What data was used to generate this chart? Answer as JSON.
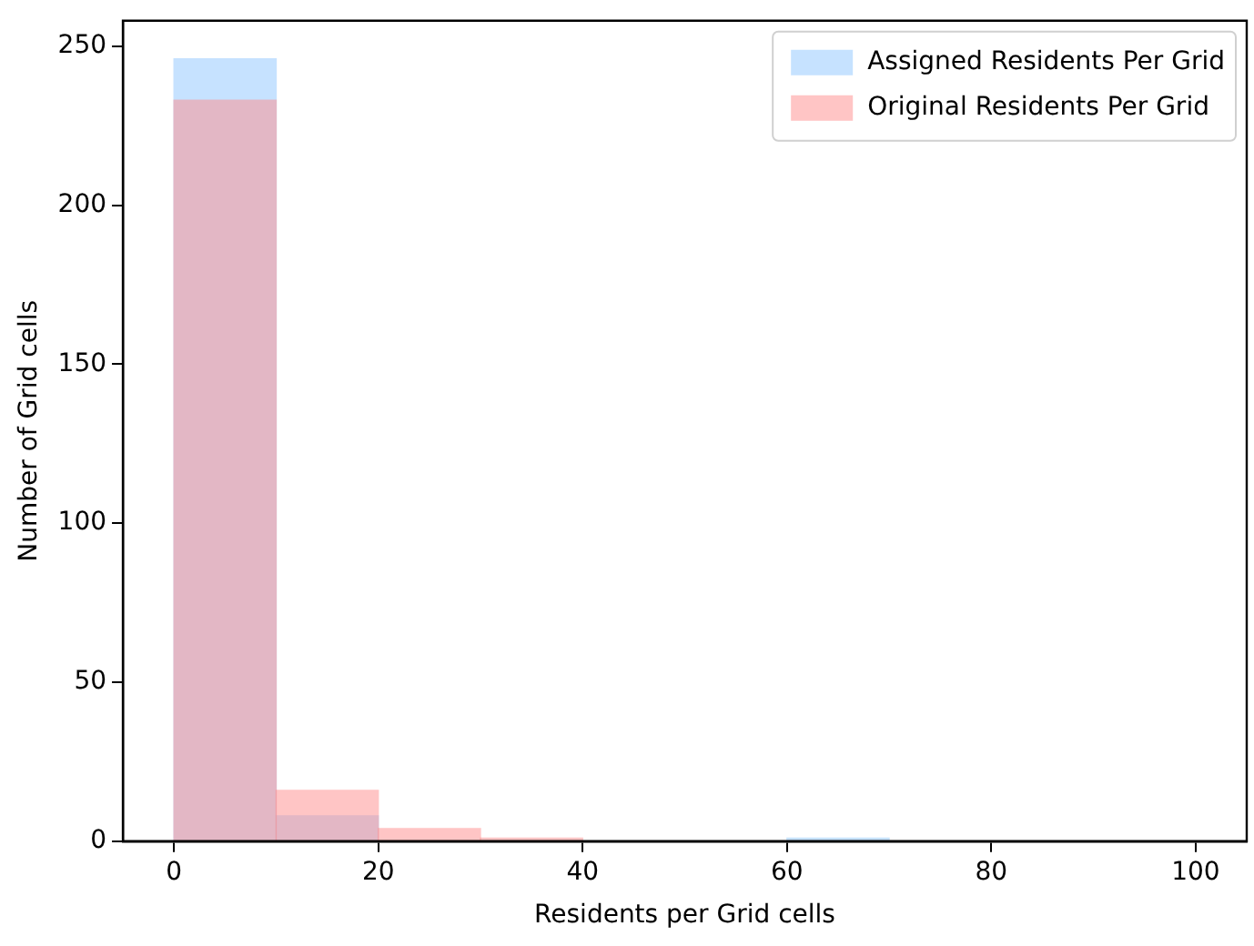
{
  "chart_data": {
    "type": "histogram",
    "xlabel": "Residents per Grid cells",
    "ylabel": "Number of Grid cells",
    "bins": [
      0,
      10,
      20,
      30,
      40,
      50,
      60,
      70,
      80,
      90,
      100
    ],
    "series": [
      {
        "name": "Assigned Residents Per Grid",
        "color": "#8ec5ff",
        "values": [
          246,
          8,
          0,
          0,
          0,
          0,
          1,
          0,
          0,
          0
        ]
      },
      {
        "name": "Original Residents Per Grid",
        "color": "#ff8c8c",
        "values": [
          233,
          16,
          4,
          1,
          0,
          0,
          0,
          0,
          0,
          0
        ]
      }
    ],
    "xlim": [
      -5,
      105
    ],
    "xticks": [
      0,
      20,
      40,
      60,
      80,
      100
    ],
    "ylim": [
      0,
      258
    ],
    "yticks": [
      0,
      50,
      100,
      150,
      200,
      250
    ],
    "grid": false,
    "legend": "top right"
  }
}
